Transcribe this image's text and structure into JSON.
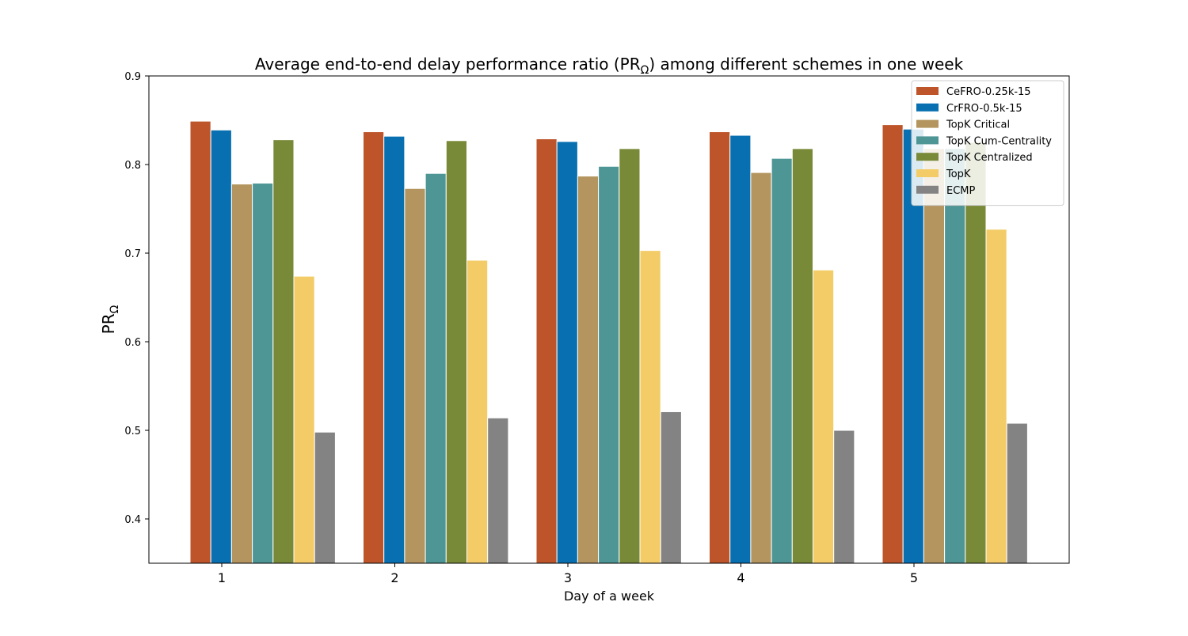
{
  "chart_data": {
    "type": "bar",
    "title_main": "Average end-to-end delay performance ratio (PR",
    "title_sub": "Ω",
    "title_tail": ") among different schemes in one week",
    "xlabel": "Day of a week",
    "ylabel_main": "PR",
    "ylabel_sub": "Ω",
    "ylim": [
      0.35,
      0.9
    ],
    "yticks": [
      "0.4",
      "0.5",
      "0.6",
      "0.7",
      "0.8",
      "0.9"
    ],
    "categories": [
      "1",
      "2",
      "3",
      "4",
      "5"
    ],
    "legend_position": "top-right",
    "series": [
      {
        "name": "CeFRO-0.25k-15",
        "color": "#BE552A",
        "values": [
          0.849,
          0.837,
          0.829,
          0.837,
          0.845
        ]
      },
      {
        "name": "CrFRO-0.5k-15",
        "color": "#0870B0",
        "values": [
          0.839,
          0.832,
          0.826,
          0.833,
          0.84
        ]
      },
      {
        "name": "TopK Critical",
        "color": "#B4955F",
        "values": [
          0.778,
          0.773,
          0.787,
          0.791,
          0.818
        ]
      },
      {
        "name": "TopK Cum-Centrality",
        "color": "#4D9695",
        "values": [
          0.779,
          0.79,
          0.798,
          0.807,
          0.818
        ]
      },
      {
        "name": "TopK Centralized",
        "color": "#788A38",
        "values": [
          0.828,
          0.827,
          0.818,
          0.818,
          0.825
        ]
      },
      {
        "name": "TopK",
        "color": "#F3CC67",
        "values": [
          0.674,
          0.692,
          0.703,
          0.681,
          0.727
        ]
      },
      {
        "name": "ECMP",
        "color": "#838383",
        "values": [
          0.498,
          0.514,
          0.521,
          0.5,
          0.508
        ]
      }
    ]
  }
}
